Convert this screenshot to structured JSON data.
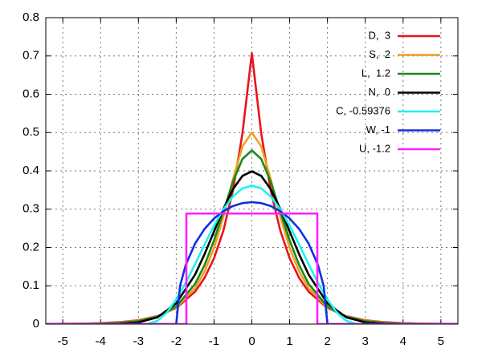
{
  "chart_data": {
    "type": "line",
    "x": [
      -5.45,
      -5,
      -4.5,
      -4,
      -3.5,
      -3,
      -2.5,
      -2,
      -1.5,
      -1.25,
      -1,
      -0.75,
      -0.5,
      -0.25,
      0,
      0.25,
      0.5,
      0.75,
      1,
      1.25,
      1.5,
      2,
      2.5,
      3,
      3.5,
      4,
      4.5,
      5,
      5.45
    ],
    "series": [
      {
        "name": "D,  3",
        "color": "#e8141c",
        "values": [
          0.0003,
          0.0006,
          0.0012,
          0.0025,
          0.005,
          0.0102,
          0.0206,
          0.0418,
          0.0848,
          0.1207,
          0.1719,
          0.2448,
          0.3487,
          0.4965,
          0.7071,
          0.4965,
          0.3487,
          0.2448,
          0.1719,
          0.1207,
          0.0848,
          0.0418,
          0.0206,
          0.0102,
          0.005,
          0.0025,
          0.0012,
          0.0006,
          0.0003
        ]
      },
      {
        "name": "S,  2",
        "color": "#f0a020",
        "values": [
          0.0002,
          0.0004,
          0.00085,
          0.0019,
          0.0041,
          0.009,
          0.0197,
          0.0431,
          0.094,
          0.1377,
          0.1993,
          0.2813,
          0.3775,
          0.4638,
          0.5,
          0.4638,
          0.3775,
          0.2813,
          0.1993,
          0.1377,
          0.094,
          0.0431,
          0.0197,
          0.009,
          0.0041,
          0.0019,
          0.00085,
          0.0004,
          0.0002
        ]
      },
      {
        "name": "L,  1.2",
        "color": "#1a8a1a",
        "values": [
          0.0001,
          0.0002,
          0.0005,
          0.0013,
          0.0032,
          0.0078,
          0.019,
          0.0456,
          0.1051,
          0.1543,
          0.2184,
          0.2946,
          0.3717,
          0.4309,
          0.4535,
          0.4309,
          0.3717,
          0.2946,
          0.2184,
          0.1543,
          0.1051,
          0.0456,
          0.019,
          0.0078,
          0.0032,
          0.0013,
          0.0005,
          0.0002,
          0.0001
        ]
      },
      {
        "name": "N,  0",
        "color": "#000000",
        "values": [
          0,
          0,
          0,
          0.0001,
          0.0009,
          0.0044,
          0.0175,
          0.054,
          0.1295,
          0.1826,
          0.242,
          0.3011,
          0.3521,
          0.3867,
          0.3989,
          0.3867,
          0.3521,
          0.3011,
          0.242,
          0.1826,
          0.1295,
          0.054,
          0.0175,
          0.0044,
          0.0009,
          0.0001,
          0,
          0,
          0
        ]
      },
      {
        "name": "C, -0.59376",
        "color": "#20f0f0",
        "x": [
          -5.45,
          -2.766,
          -2.5,
          -2.25,
          -2,
          -1.75,
          -1.5,
          -1.25,
          -1,
          -0.75,
          -0.5,
          -0.25,
          0,
          0.25,
          0.5,
          0.75,
          1,
          1.25,
          1.5,
          1.75,
          2,
          2.25,
          2.5,
          2.766,
          5.45
        ],
        "values": [
          0,
          0,
          0.0083,
          0.0302,
          0.0643,
          0.1076,
          0.1568,
          0.208,
          0.2571,
          0.2999,
          0.3332,
          0.3543,
          0.3615,
          0.3543,
          0.3332,
          0.2999,
          0.2571,
          0.208,
          0.1568,
          0.1076,
          0.0643,
          0.0302,
          0.0083,
          0,
          0
        ]
      },
      {
        "name": "W, -1",
        "color": "#1030e0",
        "x": [
          -5.45,
          -2,
          -1.9,
          -1.75,
          -1.5,
          -1.25,
          -1,
          -0.75,
          -0.5,
          -0.25,
          0,
          0.25,
          0.5,
          0.75,
          1,
          1.25,
          1.5,
          1.75,
          1.9,
          2,
          5.45
        ],
        "values": [
          0,
          0,
          0.0994,
          0.1541,
          0.2105,
          0.2485,
          0.2757,
          0.2951,
          0.3082,
          0.3158,
          0.3183,
          0.3158,
          0.3082,
          0.2951,
          0.2757,
          0.2485,
          0.2105,
          0.1541,
          0.0994,
          0,
          0
        ]
      },
      {
        "name": "U, -1.2",
        "color": "#ff20ff",
        "x": [
          -5.45,
          -1.732,
          -1.732,
          1.732,
          1.732,
          5.45
        ],
        "values": [
          0,
          0,
          0.2887,
          0.2887,
          0,
          0
        ]
      }
    ],
    "xlim": [
      -5.45,
      5.45
    ],
    "xticks": [
      -5,
      -4,
      -3,
      -2,
      -1,
      0,
      1,
      2,
      3,
      4,
      5
    ],
    "ylim": [
      0,
      0.8
    ],
    "yticks": [
      0,
      0.1,
      0.2,
      0.3,
      0.4,
      0.5,
      0.6,
      0.7,
      0.8
    ],
    "grid": true,
    "legend": "top-right"
  }
}
